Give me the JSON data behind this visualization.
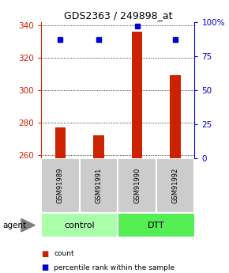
{
  "title": "GDS2363 / 249898_at",
  "samples": [
    "GSM91989",
    "GSM91991",
    "GSM91990",
    "GSM91992"
  ],
  "groups": [
    "control",
    "control",
    "DTT",
    "DTT"
  ],
  "bar_values": [
    277,
    272,
    336,
    309
  ],
  "percentile_values": [
    87,
    87,
    97,
    87
  ],
  "ylim_left": [
    258,
    342
  ],
  "ylim_right": [
    0,
    100
  ],
  "yticks_left": [
    260,
    280,
    300,
    320,
    340
  ],
  "yticks_right": [
    0,
    25,
    50,
    75,
    100
  ],
  "bar_color": "#cc2200",
  "dot_color": "#0000cc",
  "group_colors": {
    "control": "#aaffaa",
    "DTT": "#55ee55"
  },
  "left_tick_color": "#cc2200",
  "right_tick_color": "#0000cc",
  "legend_items": [
    {
      "label": "count",
      "color": "#cc2200"
    },
    {
      "label": "percentile rank within the sample",
      "color": "#0000cc"
    }
  ],
  "agent_label": "agent",
  "sample_box_color": "#cccccc",
  "grid_color": "#000000",
  "bar_width": 0.28
}
